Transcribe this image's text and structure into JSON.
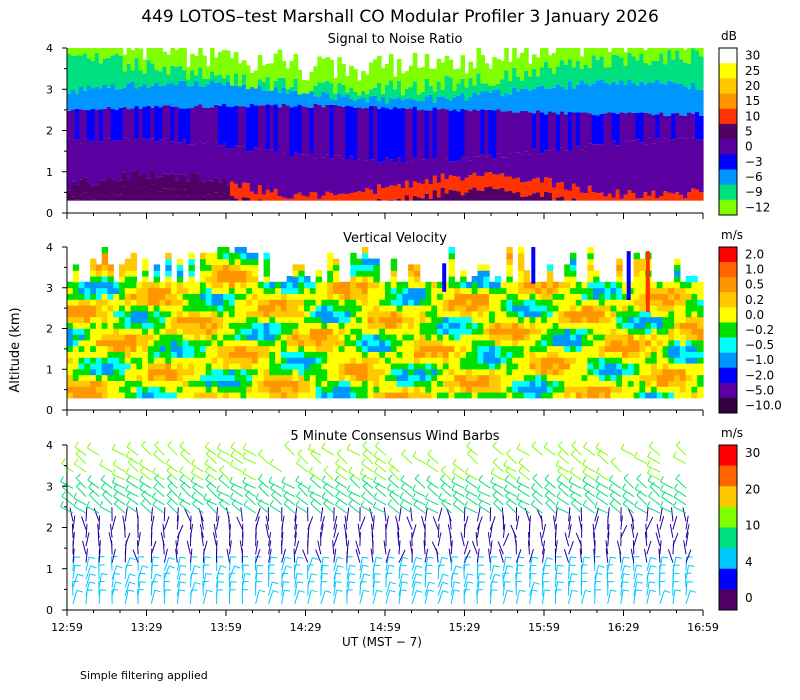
{
  "title": "449 LOTOS–test Marshall CO Modular Profiler  3 January 2026",
  "y_axis_label": "Altitude (km)",
  "x_axis_label": "UT  (MST − 7)",
  "footer_note": "Simple filtering applied",
  "time_ticks": [
    "12:59",
    "13:29",
    "13:59",
    "14:29",
    "14:59",
    "15:29",
    "15:59",
    "16:29",
    "16:59"
  ],
  "altitude_ticks": [
    "0",
    "1",
    "2",
    "3",
    "4"
  ],
  "chart_data": [
    {
      "type": "heatmap",
      "title": "Signal to Noise Ratio",
      "xlabel": "UT  (MST − 7)",
      "ylabel": "Altitude (km)",
      "x_range": [
        "12:59",
        "16:59"
      ],
      "ylim": [
        0,
        4
      ],
      "colorbar_unit": "dB",
      "colorbar_labels": [
        "30",
        "25",
        "20",
        "15",
        "10",
        "5",
        "0",
        "−3",
        "−6",
        "−9",
        "−12"
      ],
      "colorbar_colors": [
        "#ffffff",
        "#ffff00",
        "#ffc800",
        "#ff9600",
        "#ff3200",
        "#500064",
        "#5a00a0",
        "#0000ff",
        "#0096ff",
        "#00e080",
        "#80ff00"
      ]
    },
    {
      "type": "heatmap",
      "title": "Vertical Velocity",
      "xlabel": "UT  (MST − 7)",
      "ylabel": "Altitude (km)",
      "x_range": [
        "12:59",
        "16:59"
      ],
      "ylim": [
        0,
        4
      ],
      "colorbar_unit": "m/s",
      "colorbar_labels": [
        "2.0",
        "1.0",
        "0.5",
        "0.2",
        "0.0",
        "−0.2",
        "−0.5",
        "−1.0",
        "−2.0",
        "−5.0",
        "−10.0"
      ],
      "colorbar_colors": [
        "#ff0000",
        "#ff6400",
        "#ff9600",
        "#ffc800",
        "#ffff00",
        "#00e000",
        "#00ffff",
        "#0096ff",
        "#0000ff",
        "#5a00a0",
        "#300040"
      ]
    },
    {
      "type": "scatter",
      "title": "5 Minute Consensus Wind Barbs",
      "xlabel": "UT  (MST − 7)",
      "ylabel": "Altitude (km)",
      "x_range": [
        "12:59",
        "16:59"
      ],
      "ylim": [
        0,
        4
      ],
      "colorbar_unit": "m/s",
      "colorbar_labels": [
        "30",
        "20",
        "10",
        "4",
        "0"
      ],
      "colorbar_colors": [
        "#ff0000",
        "#ff6400",
        "#ffc800",
        "#80ff00",
        "#00e080",
        "#00c8ff",
        "#0000ff",
        "#500064"
      ],
      "layers": [
        {
          "altitude_range_km": [
            0,
            1.0
          ],
          "speed_ms": 5,
          "color": "#00c8ff"
        },
        {
          "altitude_range_km": [
            1.0,
            2.3
          ],
          "speed_ms": 2,
          "color": "#2000a0"
        },
        {
          "altitude_range_km": [
            2.3,
            3.0
          ],
          "speed_ms": 8,
          "color": "#00e080"
        },
        {
          "altitude_range_km": [
            3.0,
            4.0
          ],
          "speed_ms": 12,
          "color": "#80ff00"
        }
      ]
    }
  ]
}
